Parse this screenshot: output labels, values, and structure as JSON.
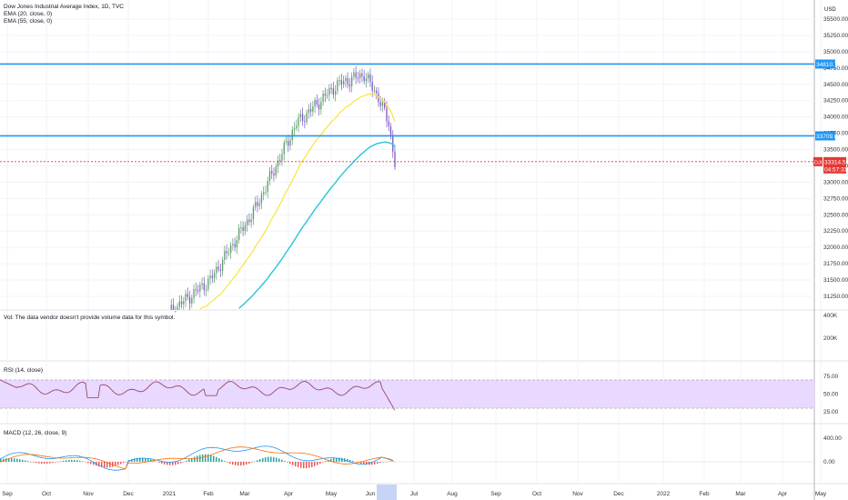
{
  "header": {
    "title": "Dow Jones Industrial Average Index, 1D, TVC",
    "ema20": "EMA (20, close, 0)",
    "ema55": "EMA (55, close, 0)"
  },
  "price_axis": {
    "currency": "USD",
    "ticks": [
      "35500.00",
      "35250.00",
      "35000.00",
      "34750.00",
      "34500.00",
      "34250.00",
      "34000.00",
      "33750.00",
      "33500.00",
      "33250.00",
      "33000.00",
      "32750.00",
      "32500.00",
      "32250.00",
      "32000.00",
      "31750.00",
      "31500.00",
      "31250.00"
    ],
    "top_tick_partial": "35500.00"
  },
  "levels": {
    "upper": {
      "value": 34810.79,
      "label": "34810.79"
    },
    "lower": {
      "value": 33709.84,
      "label": "33709.84"
    },
    "last": {
      "value": 33314.57,
      "label": "33314.57",
      "tag": "DJI",
      "countdown": "04:57:31"
    }
  },
  "volume": {
    "note": "Vol: The data vendor doesn't provide volume data for this symbol.",
    "ticks": [
      "400K",
      "200K"
    ]
  },
  "rsi": {
    "label": "RSI (14, close)",
    "ticks": [
      "75.00",
      "50.00",
      "25.00"
    ]
  },
  "macd": {
    "label": "MACD (12, 26, close, 9)",
    "ticks": [
      "400.00",
      "0.00"
    ]
  },
  "time_axis": {
    "labels": [
      "Sep",
      "Oct",
      "Nov",
      "Dec",
      "2021",
      "Feb",
      "Mar",
      "Apr",
      "May",
      "Jun",
      "Jul",
      "Aug",
      "Sep",
      "Oct",
      "Nov",
      "Dec",
      "2022",
      "Feb",
      "Mar",
      "Apr",
      "May"
    ]
  },
  "colors": {
    "level_line": "#2196f3",
    "ema20": "#f9e43a",
    "ema55": "#26c6da",
    "candle": "#5b9a6b",
    "candle_dn": "#7e57c2",
    "last_price": "#e53935",
    "rsi_band": "#e9d8ff",
    "rsi_line": "#8e3a59",
    "macd_line": "#2196f3",
    "signal_line": "#ff6d00",
    "hist_up": "#26a69a",
    "hist_dn": "#ef5350"
  },
  "chart_data": {
    "type": "candlestick",
    "title": "Dow Jones Industrial Average Index, 1D, TVC",
    "ylim": [
      31100,
      35600
    ],
    "approx_closes": [
      {
        "month": "Jan 2021",
        "close": 31000
      },
      {
        "month": "Feb 2021",
        "close": 31500
      },
      {
        "month": "Mar 2021",
        "close": 32900
      },
      {
        "month": "Apr 2021",
        "close": 34000
      },
      {
        "month": "May 2021",
        "close": 34500
      },
      {
        "month": "Jun 2021",
        "close": 33300
      }
    ],
    "ema20_end": 34150,
    "ema55_end": 33850,
    "rsi_last": 28,
    "macd_last": -80
  }
}
